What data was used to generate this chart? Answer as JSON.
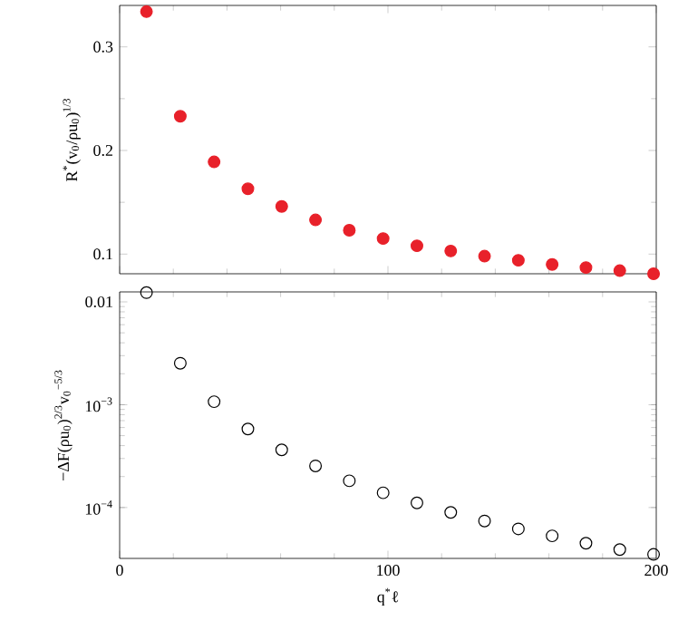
{
  "chart_data": [
    {
      "type": "scatter",
      "ylabel": "R$^{*}$(v$_{0}$/ρu$_{0}$)$^{1/3}$",
      "marker": "circle",
      "tick_labels": "y",
      "xlim": [
        0,
        200
      ],
      "xticks": [
        0,
        100,
        200
      ],
      "ylim": [
        0.081,
        0.34
      ],
      "yticks": [
        0.1,
        0.2,
        0.3
      ],
      "x": [
        10,
        22.6,
        35.2,
        47.8,
        60.4,
        73,
        85.6,
        98.2,
        110.8,
        123.4,
        136,
        148.6,
        161.2,
        173.8,
        186.4,
        199
      ],
      "series": [
        {
          "color": "#e8212a",
          "values": [
            0.334,
            0.233,
            0.189,
            0.163,
            0.146,
            0.133,
            0.123,
            0.115,
            0.108,
            0.103,
            0.098,
            0.094,
            0.09,
            0.087,
            0.084,
            0.081
          ]
        }
      ]
    },
    {
      "type": "scatter",
      "xlabel": "q$^{*}$ℓ",
      "ylabel": "−ΔF(ρu$_{0}$)$^{2/3}$v$_{0}$$^{−5/3}$",
      "marker": "circle",
      "log": "y",
      "xlim": [
        0,
        200
      ],
      "xticks": [
        0,
        100,
        200
      ],
      "ylim": [
        3.2e-05,
        0.0125
      ],
      "yticks": [
        {
          "value": 0.0001,
          "label": "10$^{−4}$"
        },
        {
          "value": 0.001,
          "label": "10$^{−3}$"
        },
        {
          "value": 0.01,
          "label": "0.01"
        }
      ],
      "x": [
        10,
        22.6,
        35.2,
        47.8,
        60.4,
        73,
        85.6,
        98.2,
        110.8,
        123.4,
        136,
        148.6,
        161.2,
        173.8,
        186.4,
        199
      ],
      "series": [
        {
          "color": "#000000",
          "values": [
            0.0123,
            0.00253,
            0.00107,
            0.00058,
            0.000364,
            0.000254,
            0.000182,
            0.000139,
            0.000111,
            8.97e-05,
            7.4e-05,
            6.2e-05,
            5.3e-05,
            4.5e-05,
            3.9e-05,
            3.5e-05
          ]
        }
      ]
    }
  ]
}
